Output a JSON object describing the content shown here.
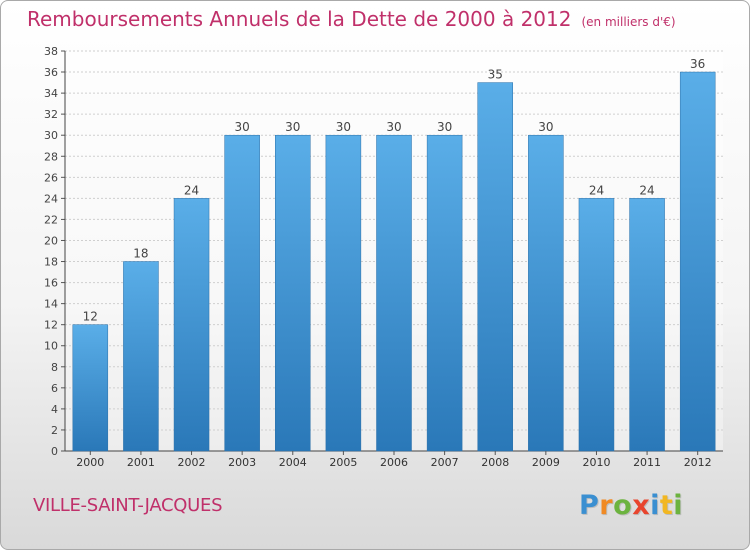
{
  "title": "Remboursements Annuels de la Dette de 2000 à 2012",
  "unit": "(en milliers d'€)",
  "commune": "VILLE-SAINT-JACQUES",
  "logo": {
    "letters": [
      "P",
      "r",
      "o",
      "x",
      "i",
      "t",
      "i"
    ],
    "colors": [
      "#3a8fd1",
      "#f08a24",
      "#6cb33f",
      "#e8452e",
      "#3a8fd1",
      "#f2b722",
      "#6cb33f"
    ]
  },
  "colors": {
    "title": "#c0306a",
    "bar_top": "#5aaee8",
    "bar_bottom": "#2a78b8",
    "grid": "#cfcfcf"
  },
  "chart_data": {
    "type": "bar",
    "title": "Remboursements Annuels de la Dette de 2000 à 2012",
    "categories": [
      "2000",
      "2001",
      "2002",
      "2003",
      "2004",
      "2005",
      "2006",
      "2007",
      "2008",
      "2009",
      "2010",
      "2011",
      "2012"
    ],
    "values": [
      12,
      18,
      24,
      30,
      30,
      30,
      30,
      30,
      35,
      30,
      24,
      24,
      36
    ],
    "ylim": [
      0,
      38
    ],
    "yticks": [
      0,
      2,
      4,
      6,
      8,
      10,
      12,
      14,
      16,
      18,
      20,
      22,
      24,
      26,
      28,
      30,
      32,
      34,
      36,
      38
    ],
    "grid": true,
    "data_labels": true
  }
}
